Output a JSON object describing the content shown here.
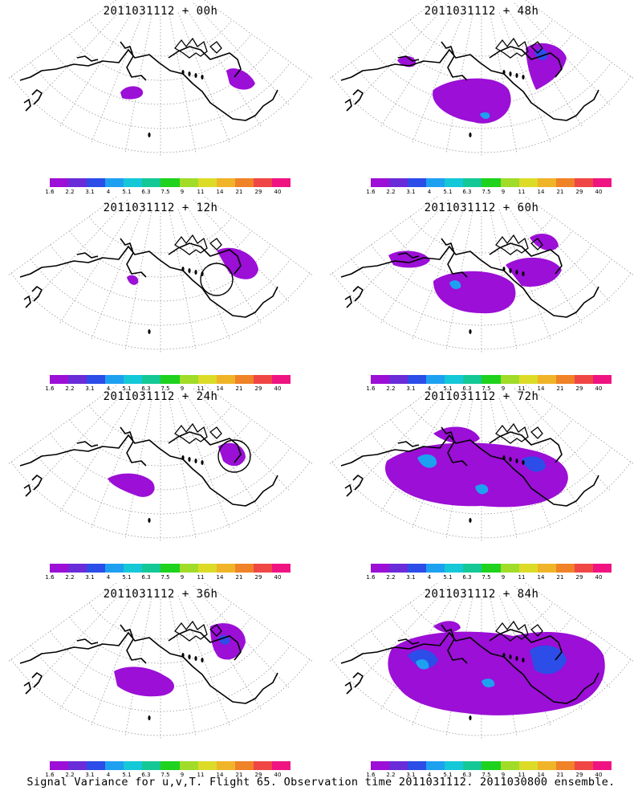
{
  "panels": [
    {
      "title": "2011031112 + 00h"
    },
    {
      "title": "2011031112 + 48h"
    },
    {
      "title": "2011031112 + 12h"
    },
    {
      "title": "2011031112 + 60h"
    },
    {
      "title": "2011031112 + 24h"
    },
    {
      "title": "2011031112 + 72h"
    },
    {
      "title": "2011031112 + 36h"
    },
    {
      "title": "2011031112 + 84h"
    }
  ],
  "colorbar": {
    "labels": [
      "1.6",
      "2.2",
      "3.1",
      "4",
      "5.1",
      "6.3",
      "7.5",
      "9",
      "11",
      "14",
      "21",
      "29",
      "40"
    ],
    "colors": [
      "#9b0fd6",
      "#6a2bd8",
      "#2c4de8",
      "#1ea0f0",
      "#14c8d8",
      "#14c896",
      "#1ed21e",
      "#a0dc28",
      "#dcdc28",
      "#f0b428",
      "#f08228",
      "#f04646",
      "#f01482"
    ]
  },
  "footer": "Signal Variance for u,v,T. Flight 65. Observation time 2011031112. 2011030800 ensemble."
}
